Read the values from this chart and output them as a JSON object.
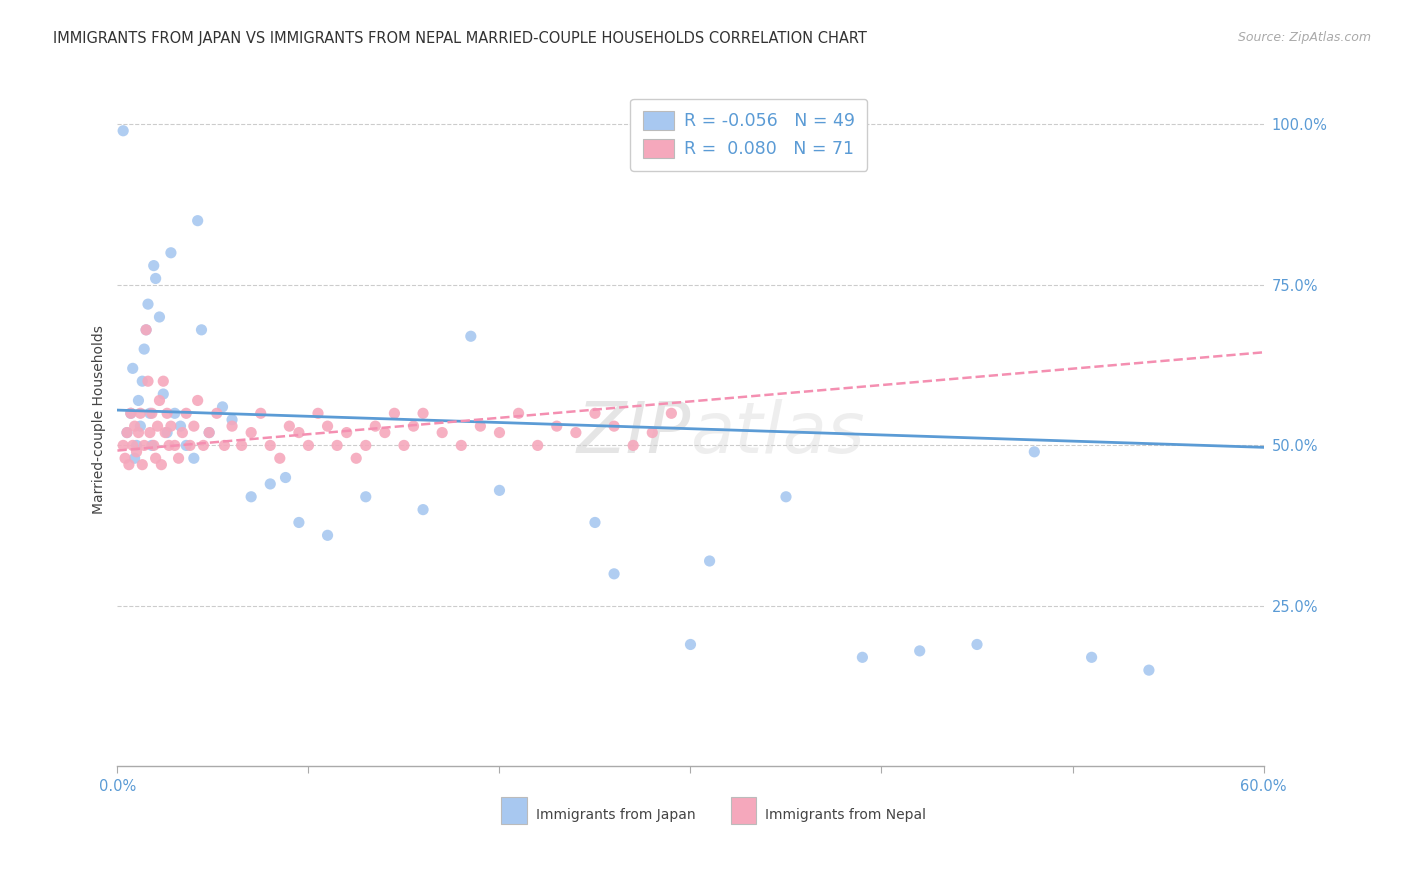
{
  "title": "IMMIGRANTS FROM JAPAN VS IMMIGRANTS FROM NEPAL MARRIED-COUPLE HOUSEHOLDS CORRELATION CHART",
  "source": "Source: ZipAtlas.com",
  "ylabel": "Married-couple Households",
  "xlim": [
    0.0,
    0.6
  ],
  "ylim": [
    0.0,
    1.08
  ],
  "japan_color": "#a8c8f0",
  "nepal_color": "#f5a8bc",
  "japan_line_color": "#5b9bd5",
  "nepal_line_color": "#f48fb1",
  "japan_R": -0.056,
  "japan_N": 49,
  "nepal_R": 0.08,
  "nepal_N": 71,
  "background_color": "#ffffff",
  "grid_color": "#cccccc",
  "japan_x": [
    0.003,
    0.005,
    0.007,
    0.008,
    0.009,
    0.01,
    0.011,
    0.012,
    0.013,
    0.014,
    0.015,
    0.016,
    0.017,
    0.018,
    0.019,
    0.02,
    0.022,
    0.024,
    0.026,
    0.028,
    0.03,
    0.033,
    0.036,
    0.04,
    0.044,
    0.048,
    0.055,
    0.06,
    0.07,
    0.08,
    0.095,
    0.11,
    0.13,
    0.16,
    0.2,
    0.25,
    0.3,
    0.35,
    0.39,
    0.42,
    0.45,
    0.48,
    0.51,
    0.54,
    0.26,
    0.31,
    0.185,
    0.088,
    0.042
  ],
  "japan_y": [
    0.99,
    0.52,
    0.55,
    0.62,
    0.48,
    0.5,
    0.57,
    0.53,
    0.6,
    0.65,
    0.68,
    0.72,
    0.55,
    0.5,
    0.78,
    0.76,
    0.7,
    0.58,
    0.52,
    0.8,
    0.55,
    0.53,
    0.5,
    0.48,
    0.68,
    0.52,
    0.56,
    0.54,
    0.42,
    0.44,
    0.38,
    0.36,
    0.42,
    0.4,
    0.43,
    0.38,
    0.19,
    0.42,
    0.17,
    0.18,
    0.19,
    0.49,
    0.17,
    0.15,
    0.3,
    0.32,
    0.67,
    0.45,
    0.85
  ],
  "nepal_x": [
    0.003,
    0.004,
    0.005,
    0.006,
    0.007,
    0.008,
    0.009,
    0.01,
    0.011,
    0.012,
    0.013,
    0.014,
    0.015,
    0.016,
    0.017,
    0.018,
    0.019,
    0.02,
    0.021,
    0.022,
    0.023,
    0.024,
    0.025,
    0.026,
    0.027,
    0.028,
    0.03,
    0.032,
    0.034,
    0.036,
    0.038,
    0.04,
    0.042,
    0.045,
    0.048,
    0.052,
    0.056,
    0.06,
    0.065,
    0.07,
    0.075,
    0.08,
    0.085,
    0.09,
    0.095,
    0.1,
    0.105,
    0.11,
    0.115,
    0.12,
    0.125,
    0.13,
    0.135,
    0.14,
    0.145,
    0.15,
    0.155,
    0.16,
    0.17,
    0.18,
    0.19,
    0.2,
    0.21,
    0.22,
    0.23,
    0.24,
    0.25,
    0.26,
    0.27,
    0.28,
    0.29
  ],
  "nepal_y": [
    0.5,
    0.48,
    0.52,
    0.47,
    0.55,
    0.5,
    0.53,
    0.49,
    0.52,
    0.55,
    0.47,
    0.5,
    0.68,
    0.6,
    0.52,
    0.55,
    0.5,
    0.48,
    0.53,
    0.57,
    0.47,
    0.6,
    0.52,
    0.55,
    0.5,
    0.53,
    0.5,
    0.48,
    0.52,
    0.55,
    0.5,
    0.53,
    0.57,
    0.5,
    0.52,
    0.55,
    0.5,
    0.53,
    0.5,
    0.52,
    0.55,
    0.5,
    0.48,
    0.53,
    0.52,
    0.5,
    0.55,
    0.53,
    0.5,
    0.52,
    0.48,
    0.5,
    0.53,
    0.52,
    0.55,
    0.5,
    0.53,
    0.55,
    0.52,
    0.5,
    0.53,
    0.52,
    0.55,
    0.5,
    0.53,
    0.52,
    0.55,
    0.53,
    0.5,
    0.52,
    0.55
  ],
  "japan_line_x0": 0.0,
  "japan_line_x1": 0.6,
  "japan_line_y0": 0.555,
  "japan_line_y1": 0.497,
  "nepal_line_x0": 0.0,
  "nepal_line_x1": 0.6,
  "nepal_line_y0": 0.492,
  "nepal_line_y1": 0.645
}
